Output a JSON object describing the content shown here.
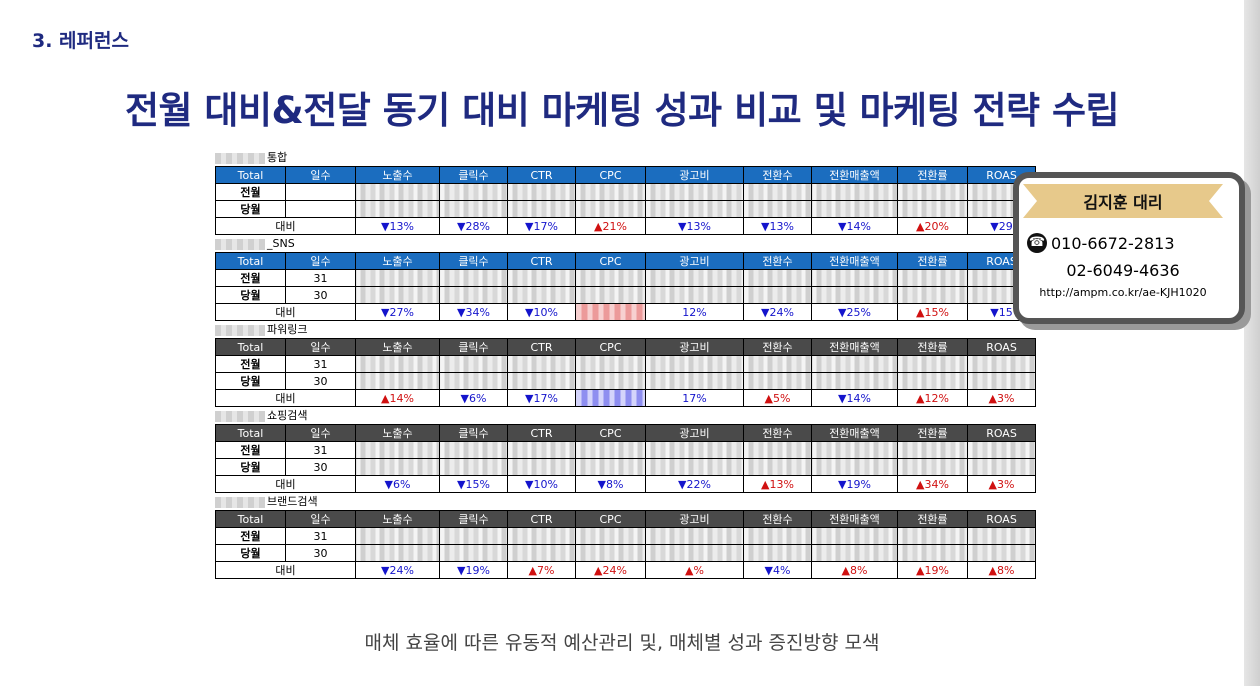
{
  "slide": {
    "section": "3. 레퍼런스",
    "title": "전월 대비&전달 동기 대비 마케팅 성과 비교 및 마케팅 전략 수립",
    "caption": "매체 효율에 따른 유동적 예산관리 및, 매체별 성과 증진방향 모색"
  },
  "headers": [
    "Total",
    "일수",
    "노출수",
    "클릭수",
    "CTR",
    "CPC",
    "광고비",
    "전환수",
    "전환매출액",
    "전환률",
    "ROAS"
  ],
  "row_labels": {
    "prev": "전월",
    "curr": "당월",
    "compare": "대비"
  },
  "reports": [
    {
      "name": "통합",
      "prev_days": "",
      "curr_days": "",
      "compare": [
        {
          "v": "▼13%",
          "d": "down"
        },
        {
          "v": "▼28%",
          "d": "down"
        },
        {
          "v": "▼17%",
          "d": "down"
        },
        {
          "v": "▲21%",
          "d": "up"
        },
        {
          "v": "▼13%",
          "d": "down"
        },
        {
          "v": "▼13%",
          "d": "down"
        },
        {
          "v": "▼14%",
          "d": "down"
        },
        {
          "v": "▲20%",
          "d": "up"
        },
        {
          "v": "▼29",
          "d": "down"
        }
      ]
    },
    {
      "name": "_SNS",
      "prev_days": "31",
      "curr_days": "30",
      "compare": [
        {
          "v": "▼27%",
          "d": "down"
        },
        {
          "v": "▼34%",
          "d": "down"
        },
        {
          "v": "▼10%",
          "d": "down"
        },
        {
          "v": "",
          "d": "redblur"
        },
        {
          "v": "12%",
          "d": "down"
        },
        {
          "v": "▼24%",
          "d": "down"
        },
        {
          "v": "▼25%",
          "d": "down"
        },
        {
          "v": "▲15%",
          "d": "up"
        },
        {
          "v": "▼15",
          "d": "down"
        }
      ]
    },
    {
      "name": "파워링크",
      "prev_days": "31",
      "curr_days": "30",
      "compare": [
        {
          "v": "▲14%",
          "d": "up"
        },
        {
          "v": "▼6%",
          "d": "down"
        },
        {
          "v": "▼17%",
          "d": "down"
        },
        {
          "v": "",
          "d": "blueblur"
        },
        {
          "v": "17%",
          "d": "down"
        },
        {
          "v": "▲5%",
          "d": "up"
        },
        {
          "v": "▼14%",
          "d": "down"
        },
        {
          "v": "▲12%",
          "d": "up"
        },
        {
          "v": "▲3%",
          "d": "up"
        }
      ]
    },
    {
      "name": "쇼핑검색",
      "prev_days": "31",
      "curr_days": "30",
      "compare": [
        {
          "v": "▼6%",
          "d": "down"
        },
        {
          "v": "▼15%",
          "d": "down"
        },
        {
          "v": "▼10%",
          "d": "down"
        },
        {
          "v": "▼8%",
          "d": "down"
        },
        {
          "v": "▼22%",
          "d": "down"
        },
        {
          "v": "▲13%",
          "d": "up"
        },
        {
          "v": "▼19%",
          "d": "down"
        },
        {
          "v": "▲34%",
          "d": "up"
        },
        {
          "v": "▲3%",
          "d": "up"
        }
      ]
    },
    {
      "name": "브랜드검색",
      "prev_days": "31",
      "curr_days": "30",
      "compare": [
        {
          "v": "▼24%",
          "d": "down"
        },
        {
          "v": "▼19%",
          "d": "down"
        },
        {
          "v": "▲7%",
          "d": "up"
        },
        {
          "v": "▲24%",
          "d": "up"
        },
        {
          "v": "▲%",
          "d": "up"
        },
        {
          "v": "▼4%",
          "d": "down"
        },
        {
          "v": "▲8%",
          "d": "up"
        },
        {
          "v": "▲19%",
          "d": "up"
        },
        {
          "v": "▲8%",
          "d": "up"
        }
      ]
    }
  ],
  "contact": {
    "name": "김지훈 대리",
    "phone1": "010-6672-2813",
    "phone2": "02-6049-4636",
    "url": "http://ampm.co.kr/ae-KJH1020",
    "icon": "telephone-icon"
  }
}
